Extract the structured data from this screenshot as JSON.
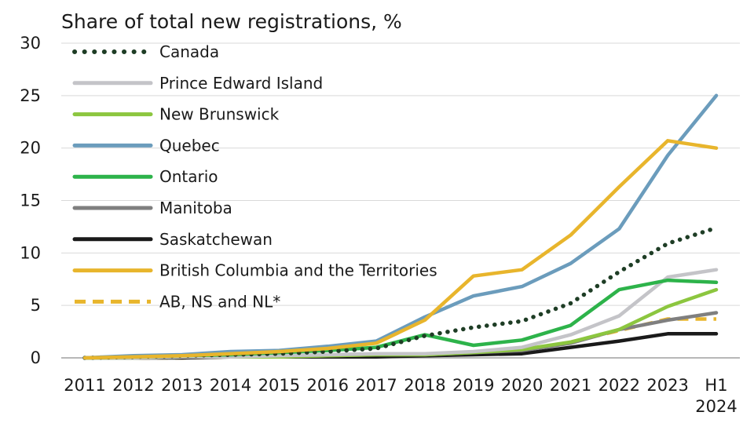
{
  "chart_data": {
    "type": "line",
    "title": "Share of total new registrations, %",
    "xlabel": "",
    "ylabel": "",
    "ylim": [
      0,
      30
    ],
    "yticks": [
      0,
      5,
      10,
      15,
      20,
      25,
      30
    ],
    "grid": true,
    "legend_position": "top-left",
    "categories": [
      [
        "2011"
      ],
      [
        "2012"
      ],
      [
        "2013"
      ],
      [
        "2014"
      ],
      [
        "2015"
      ],
      [
        "2016"
      ],
      [
        "2017"
      ],
      [
        "2018"
      ],
      [
        "2019"
      ],
      [
        "2020"
      ],
      [
        "2021"
      ],
      [
        "2022"
      ],
      [
        "2023"
      ],
      [
        "H1",
        "2024"
      ]
    ],
    "series": [
      {
        "name": "Canada",
        "color": "#1e3d25",
        "style": "dotted",
        "values": [
          0.0,
          0.1,
          0.2,
          0.3,
          0.4,
          0.6,
          0.9,
          2.1,
          2.9,
          3.5,
          5.2,
          8.2,
          10.9,
          12.4
        ]
      },
      {
        "name": "Prince Edward Island",
        "color": "#c4c4c8",
        "style": "solid",
        "values": [
          0.0,
          0.0,
          0.1,
          0.1,
          0.2,
          0.3,
          0.4,
          0.4,
          0.6,
          1.0,
          2.2,
          4.0,
          7.7,
          8.4
        ]
      },
      {
        "name": "New Brunswick",
        "color": "#8cc63f",
        "style": "solid",
        "values": [
          0.0,
          0.0,
          0.1,
          0.1,
          0.1,
          0.2,
          0.3,
          0.3,
          0.5,
          0.8,
          1.5,
          2.7,
          4.9,
          6.5
        ]
      },
      {
        "name": "Quebec",
        "color": "#6b9cbc",
        "style": "solid",
        "values": [
          0.0,
          0.2,
          0.3,
          0.6,
          0.7,
          1.1,
          1.6,
          3.9,
          5.9,
          6.8,
          9.0,
          12.3,
          19.3,
          25.0
        ]
      },
      {
        "name": "Ontario",
        "color": "#2db34a",
        "style": "solid",
        "values": [
          0.0,
          0.1,
          0.2,
          0.3,
          0.5,
          0.7,
          1.0,
          2.2,
          1.2,
          1.7,
          3.1,
          6.5,
          7.4,
          7.2
        ]
      },
      {
        "name": "Manitoba",
        "color": "#7f7f7f",
        "style": "solid",
        "values": [
          0.0,
          0.0,
          0.1,
          0.1,
          0.1,
          0.2,
          0.3,
          0.3,
          0.5,
          0.7,
          1.4,
          2.7,
          3.6,
          4.3
        ]
      },
      {
        "name": "Saskatchewan",
        "color": "#1a1a1a",
        "style": "solid",
        "values": [
          0.0,
          0.0,
          0.0,
          0.1,
          0.1,
          0.1,
          0.1,
          0.2,
          0.3,
          0.4,
          1.0,
          1.6,
          2.3,
          2.3
        ]
      },
      {
        "name": "British Columbia and the Territories",
        "color": "#e8b52c",
        "style": "solid",
        "values": [
          0.0,
          0.1,
          0.2,
          0.4,
          0.6,
          0.9,
          1.4,
          3.6,
          7.8,
          8.4,
          11.7,
          16.3,
          20.7,
          20.0
        ]
      },
      {
        "name": "AB, NS and NL*",
        "color": "#e8b52c",
        "style": "dashed",
        "values": [
          0.0,
          0.0,
          0.0,
          0.1,
          0.1,
          0.1,
          0.2,
          0.3,
          0.5,
          0.7,
          1.5,
          2.6,
          3.7,
          3.7
        ]
      }
    ]
  }
}
